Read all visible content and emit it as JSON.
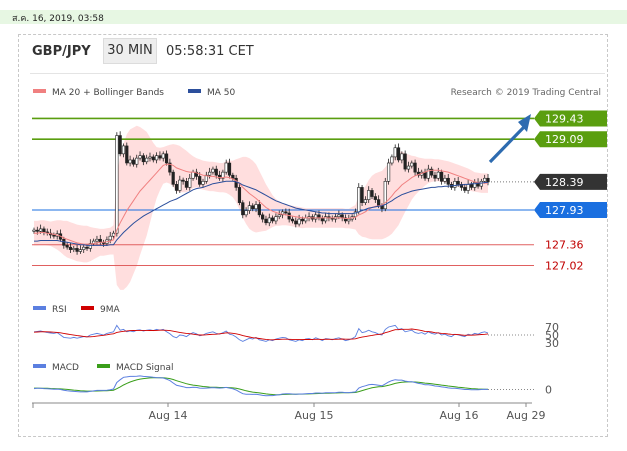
{
  "date_stamp": "ส.ค. 16, 2019, 03:58",
  "header": {
    "pair": "GBP/JPY",
    "timeframe": "30 MIN",
    "time": "05:58:31 CET"
  },
  "credit": "Research © 2019 Trading Central",
  "colors": {
    "bollinger": "#f08080",
    "ma50": "#2c4f9c",
    "resistance": "#5a9e0f",
    "support": "#e06060",
    "pivot": "#1a6fe0",
    "current": "#333333",
    "rsi": "#5b7fe0",
    "nine_ma": "#d00000",
    "macd": "#5b7fe0",
    "macd_signal": "#3a9e1a",
    "band_fill": "#ffd8d8"
  },
  "chart_data": [
    {
      "type": "candlestick",
      "legend": [
        {
          "name": "MA 20 + Bollinger Bands",
          "color": "#f08080"
        },
        {
          "name": "MA 50",
          "color": "#2c4f9c"
        }
      ],
      "ylim": [
        126.7,
        129.7
      ],
      "x_ticks": [
        "Aug 14",
        "Aug 15",
        "Aug 16",
        "Aug 29"
      ],
      "levels": [
        {
          "value": 129.43,
          "label": "129.43",
          "kind": "resistance"
        },
        {
          "value": 129.09,
          "label": "129.09",
          "kind": "resistance"
        },
        {
          "value": 128.39,
          "label": "128.39",
          "kind": "current"
        },
        {
          "value": 127.93,
          "label": "127.93",
          "kind": "pivot"
        },
        {
          "value": 127.36,
          "label": "127.36",
          "kind": "support"
        },
        {
          "value": 127.02,
          "label": "127.02",
          "kind": "support"
        }
      ],
      "close": [
        127.6,
        127.58,
        127.62,
        127.57,
        127.55,
        127.52,
        127.5,
        127.54,
        127.45,
        127.35,
        127.32,
        127.28,
        127.3,
        127.25,
        127.28,
        127.32,
        127.3,
        127.38,
        127.42,
        127.45,
        127.4,
        127.38,
        127.44,
        127.5,
        127.55,
        129.15,
        128.85,
        128.98,
        128.7,
        128.75,
        128.68,
        128.78,
        128.82,
        128.72,
        128.78,
        128.8,
        128.75,
        128.82,
        128.78,
        128.85,
        128.7,
        128.55,
        128.35,
        128.25,
        128.42,
        128.4,
        128.3,
        128.45,
        128.55,
        128.48,
        128.35,
        128.4,
        128.5,
        128.55,
        128.6,
        128.5,
        128.45,
        128.55,
        128.7,
        128.5,
        128.45,
        128.3,
        128.05,
        127.85,
        127.92,
        128.0,
        127.95,
        128.02,
        127.85,
        127.78,
        127.72,
        127.8,
        127.75,
        127.82,
        127.85,
        127.9,
        127.88,
        127.78,
        127.75,
        127.7,
        127.78,
        127.75,
        127.8,
        127.82,
        127.78,
        127.85,
        127.8,
        127.75,
        127.82,
        127.8,
        127.78,
        127.82,
        127.85,
        127.8,
        127.75,
        127.78,
        127.82,
        127.9,
        128.3,
        128.05,
        128.1,
        128.25,
        128.15,
        128.1,
        128.0,
        127.95,
        128.4,
        128.7,
        128.8,
        128.95,
        128.75,
        128.85,
        128.6,
        128.65,
        128.7,
        128.55,
        128.5,
        128.55,
        128.45,
        128.6,
        128.5,
        128.45,
        128.55,
        128.4,
        128.45,
        128.35,
        128.3,
        128.4,
        128.35,
        128.3,
        128.25,
        128.35,
        128.3,
        128.38,
        128.32,
        128.4,
        128.45,
        128.39
      ],
      "ma20": [
        127.55,
        127.55,
        127.56,
        127.56,
        127.55,
        127.54,
        127.53,
        127.52,
        127.5,
        127.47,
        127.45,
        127.43,
        127.41,
        127.39,
        127.38,
        127.37,
        127.37,
        127.37,
        127.38,
        127.39,
        127.4,
        127.4,
        127.41,
        127.42,
        127.44,
        127.6,
        127.72,
        127.82,
        127.92,
        128.0,
        128.08,
        128.16,
        128.24,
        128.3,
        128.36,
        128.42,
        128.48,
        128.54,
        128.6,
        128.66,
        128.68,
        128.68,
        128.66,
        128.62,
        128.6,
        128.58,
        128.56,
        128.55,
        128.55,
        128.54,
        128.52,
        128.5,
        128.49,
        128.48,
        128.48,
        128.47,
        128.46,
        128.46,
        128.47,
        128.46,
        128.44,
        128.41,
        128.36,
        128.3,
        128.25,
        128.2,
        128.16,
        128.12,
        128.07,
        128.02,
        127.97,
        127.94,
        127.91,
        127.89,
        127.87,
        127.86,
        127.85,
        127.84,
        127.83,
        127.82,
        127.81,
        127.8,
        127.8,
        127.8,
        127.8,
        127.8,
        127.8,
        127.8,
        127.8,
        127.8,
        127.8,
        127.8,
        127.8,
        127.8,
        127.79,
        127.79,
        127.8,
        127.81,
        127.85,
        127.87,
        127.9,
        127.94,
        127.97,
        127.99,
        128.0,
        128.01,
        128.05,
        128.1,
        128.16,
        128.23,
        128.28,
        128.34,
        128.38,
        128.42,
        128.46,
        128.49,
        128.51,
        128.53,
        128.55,
        128.57,
        128.58,
        128.58,
        128.58,
        128.57,
        128.56,
        128.55,
        128.53,
        128.51,
        128.49,
        128.47,
        128.45,
        128.43,
        128.41,
        128.39,
        128.38,
        128.37,
        128.37,
        128.37
      ],
      "bb_width": [
        0.2,
        0.2,
        0.2,
        0.2,
        0.2,
        0.2,
        0.22,
        0.24,
        0.26,
        0.28,
        0.3,
        0.3,
        0.3,
        0.3,
        0.3,
        0.3,
        0.3,
        0.28,
        0.26,
        0.24,
        0.22,
        0.22,
        0.22,
        0.22,
        0.24,
        0.9,
        1.1,
        1.2,
        1.25,
        1.25,
        1.2,
        1.15,
        1.05,
        0.95,
        0.85,
        0.7,
        0.55,
        0.42,
        0.35,
        0.3,
        0.3,
        0.32,
        0.35,
        0.38,
        0.38,
        0.36,
        0.34,
        0.3,
        0.26,
        0.24,
        0.24,
        0.24,
        0.24,
        0.24,
        0.24,
        0.24,
        0.24,
        0.24,
        0.26,
        0.28,
        0.3,
        0.35,
        0.42,
        0.5,
        0.55,
        0.58,
        0.58,
        0.56,
        0.5,
        0.44,
        0.38,
        0.32,
        0.26,
        0.22,
        0.2,
        0.18,
        0.17,
        0.17,
        0.17,
        0.17,
        0.17,
        0.17,
        0.16,
        0.16,
        0.16,
        0.16,
        0.16,
        0.16,
        0.16,
        0.16,
        0.16,
        0.16,
        0.16,
        0.16,
        0.16,
        0.16,
        0.18,
        0.2,
        0.32,
        0.38,
        0.42,
        0.48,
        0.52,
        0.54,
        0.55,
        0.56,
        0.58,
        0.6,
        0.62,
        0.62,
        0.6,
        0.55,
        0.48,
        0.42,
        0.36,
        0.32,
        0.28,
        0.25,
        0.22,
        0.2,
        0.19,
        0.18,
        0.18,
        0.18,
        0.18,
        0.18,
        0.18,
        0.18,
        0.18,
        0.18,
        0.18,
        0.18,
        0.17,
        0.16,
        0.16,
        0.16,
        0.16,
        0.16
      ],
      "ma50": [
        127.42,
        127.42,
        127.43,
        127.43,
        127.43,
        127.43,
        127.43,
        127.43,
        127.42,
        127.41,
        127.4,
        127.39,
        127.38,
        127.37,
        127.36,
        127.36,
        127.35,
        127.35,
        127.35,
        127.35,
        127.35,
        127.35,
        127.35,
        127.36,
        127.36,
        127.44,
        127.5,
        127.56,
        127.61,
        127.66,
        127.71,
        127.75,
        127.79,
        127.83,
        127.86,
        127.89,
        127.92,
        127.95,
        127.98,
        128.01,
        128.04,
        128.07,
        128.09,
        128.11,
        128.14,
        128.17,
        128.2,
        128.23,
        128.26,
        128.28,
        128.29,
        128.3,
        128.32,
        128.34,
        128.36,
        128.37,
        128.38,
        128.39,
        128.4,
        128.4,
        128.4,
        128.39,
        128.37,
        128.34,
        128.32,
        128.3,
        128.28,
        128.26,
        128.23,
        128.2,
        128.17,
        128.14,
        128.11,
        128.08,
        128.06,
        128.04,
        128.02,
        128.0,
        127.98,
        127.96,
        127.95,
        127.94,
        127.93,
        127.92,
        127.91,
        127.9,
        127.89,
        127.88,
        127.88,
        127.87,
        127.87,
        127.87,
        127.87,
        127.87,
        127.87,
        127.87,
        127.87,
        127.88,
        127.9,
        127.92,
        127.94,
        127.96,
        127.97,
        127.98,
        127.99,
        128.0,
        128.02,
        128.05,
        128.08,
        128.12,
        128.15,
        128.18,
        128.2,
        128.22,
        128.24,
        128.25,
        128.26,
        128.27,
        128.28,
        128.29,
        128.3,
        128.3,
        128.31,
        128.31,
        128.32,
        128.32,
        128.33,
        128.33,
        128.34,
        128.34,
        128.35,
        128.35,
        128.36,
        128.36,
        128.37,
        128.37,
        128.38,
        128.38
      ]
    },
    {
      "type": "line",
      "legend": [
        {
          "name": "RSI",
          "color": "#5b7fe0"
        },
        {
          "name": "9MA",
          "color": "#d00000"
        }
      ],
      "ylim": [
        30,
        70
      ],
      "y_ticks": [
        70,
        50,
        30
      ],
      "rsi": [
        58,
        59,
        60,
        58,
        56,
        55,
        54,
        56,
        50,
        44,
        43,
        42,
        44,
        42,
        44,
        46,
        45,
        50,
        52,
        54,
        52,
        50,
        54,
        56,
        58,
        74,
        62,
        64,
        58,
        60,
        58,
        62,
        63,
        60,
        62,
        63,
        61,
        64,
        62,
        64,
        58,
        53,
        46,
        43,
        50,
        49,
        46,
        52,
        56,
        53,
        48,
        50,
        54,
        56,
        58,
        54,
        52,
        56,
        60,
        52,
        50,
        45,
        38,
        34,
        38,
        42,
        40,
        44,
        38,
        36,
        34,
        38,
        36,
        40,
        42,
        44,
        43,
        38,
        36,
        34,
        38,
        36,
        40,
        41,
        38,
        43,
        40,
        36,
        41,
        40,
        38,
        41,
        43,
        40,
        36,
        38,
        41,
        46,
        66,
        56,
        58,
        62,
        58,
        56,
        52,
        50,
        64,
        70,
        72,
        74,
        64,
        66,
        58,
        60,
        62,
        56,
        54,
        56,
        52,
        58,
        54,
        52,
        56,
        50,
        52,
        48,
        46,
        52,
        50,
        48,
        46,
        52,
        50,
        54,
        52,
        56,
        58,
        55
      ],
      "nine_ma": [
        57,
        57.5,
        58,
        58.2,
        58,
        57.5,
        57,
        56.5,
        55.5,
        54,
        52.5,
        51,
        49.8,
        48.5,
        47.5,
        46.5,
        45.5,
        45.5,
        46,
        47.2,
        48.3,
        49.2,
        50.6,
        52,
        53.1,
        56.6,
        57.9,
        59.3,
        60.1,
        60.9,
        61.3,
        61.5,
        61.6,
        61.6,
        61.4,
        61.3,
        61.3,
        61.6,
        61.9,
        62.1,
        61.8,
        61,
        59.5,
        57.9,
        56.6,
        55.2,
        54,
        53.3,
        52.1,
        50.7,
        50.1,
        50,
        50.5,
        51.3,
        51.8,
        52,
        52.9,
        54,
        55.6,
        55.3,
        54.3,
        53.1,
        51.1,
        48.6,
        46.8,
        45.1,
        43.3,
        42.4,
        41.2,
        40,
        38.9,
        38.3,
        38,
        38.5,
        38.9,
        39.5,
        39.4,
        39.3,
        39.1,
        38.9,
        38.6,
        38.6,
        38.8,
        38.8,
        38.9,
        39.2,
        39.3,
        39.1,
        39.4,
        39.3,
        39.3,
        39.3,
        39.6,
        39.9,
        39.6,
        39.4,
        39.7,
        40.6,
        43.1,
        44.7,
        46.1,
        47.7,
        49.1,
        50.5,
        51.6,
        52.8,
        55.7,
        58.1,
        60.7,
        63.3,
        63.2,
        64.2,
        64.2,
        64.3,
        64.9,
        64.1,
        62.8,
        60.9,
        59.1,
        58.4,
        57.6,
        55.8,
        55.2,
        53.9,
        53.5,
        52.5,
        51.8,
        51.6,
        51.1,
        50.1,
        49.3,
        49.8,
        49.6,
        50,
        50.4,
        51.2,
        51.8,
        52.7
      ]
    },
    {
      "type": "line",
      "legend": [
        {
          "name": "MACD",
          "color": "#5b7fe0"
        },
        {
          "name": "MACD Signal",
          "color": "#3a9e1a"
        }
      ],
      "y_ticks": [
        0
      ],
      "macd": [
        0.02,
        0.025,
        0.025,
        0.02,
        0.015,
        0.01,
        0.005,
        0.008,
        0,
        -0.015,
        -0.025,
        -0.035,
        -0.04,
        -0.045,
        -0.05,
        -0.05,
        -0.05,
        -0.04,
        -0.03,
        -0.02,
        -0.02,
        -0.02,
        -0.015,
        -0.005,
        0.01,
        0.15,
        0.21,
        0.26,
        0.27,
        0.28,
        0.28,
        0.285,
        0.29,
        0.28,
        0.275,
        0.27,
        0.26,
        0.255,
        0.25,
        0.245,
        0.22,
        0.19,
        0.14,
        0.09,
        0.075,
        0.06,
        0.04,
        0.04,
        0.05,
        0.045,
        0.03,
        0.025,
        0.03,
        0.035,
        0.04,
        0.035,
        0.03,
        0.035,
        0.045,
        0.03,
        0.015,
        -0.01,
        -0.05,
        -0.09,
        -0.1,
        -0.1,
        -0.105,
        -0.1,
        -0.11,
        -0.125,
        -0.135,
        -0.13,
        -0.13,
        -0.12,
        -0.11,
        -0.095,
        -0.09,
        -0.09,
        -0.095,
        -0.1,
        -0.095,
        -0.095,
        -0.09,
        -0.085,
        -0.085,
        -0.075,
        -0.075,
        -0.08,
        -0.07,
        -0.07,
        -0.07,
        -0.065,
        -0.06,
        -0.06,
        -0.065,
        -0.065,
        -0.06,
        -0.05,
        0.03,
        0.06,
        0.08,
        0.1,
        0.11,
        0.1,
        0.09,
        0.08,
        0.12,
        0.16,
        0.19,
        0.21,
        0.2,
        0.2,
        0.18,
        0.17,
        0.165,
        0.15,
        0.13,
        0.12,
        0.1,
        0.1,
        0.09,
        0.075,
        0.07,
        0.055,
        0.05,
        0.035,
        0.025,
        0.025,
        0.02,
        0.01,
        0,
        0,
        -0.005,
        -0.005,
        -0.005,
        0,
        0.005,
        0
      ],
      "macd_signal": [
        0.03,
        0.03,
        0.029,
        0.027,
        0.025,
        0.022,
        0.019,
        0.017,
        0.013,
        0.008,
        0.002,
        -0.005,
        -0.012,
        -0.019,
        -0.025,
        -0.03,
        -0.034,
        -0.035,
        -0.034,
        -0.031,
        -0.029,
        -0.027,
        -0.025,
        -0.021,
        -0.015,
        0.018,
        0.056,
        0.096,
        0.131,
        0.161,
        0.185,
        0.205,
        0.222,
        0.233,
        0.242,
        0.247,
        0.25,
        0.251,
        0.251,
        0.25,
        0.244,
        0.233,
        0.214,
        0.189,
        0.166,
        0.145,
        0.124,
        0.107,
        0.095,
        0.085,
        0.074,
        0.064,
        0.057,
        0.052,
        0.05,
        0.047,
        0.044,
        0.042,
        0.043,
        0.04,
        0.035,
        0.026,
        0.011,
        -0.009,
        -0.027,
        -0.042,
        -0.055,
        -0.064,
        -0.073,
        -0.083,
        -0.094,
        -0.101,
        -0.107,
        -0.11,
        -0.11,
        -0.107,
        -0.104,
        -0.101,
        -0.1,
        -0.1,
        -0.099,
        -0.098,
        -0.096,
        -0.094,
        -0.092,
        -0.088,
        -0.086,
        -0.084,
        -0.081,
        -0.079,
        -0.077,
        -0.074,
        -0.072,
        -0.069,
        -0.068,
        -0.068,
        -0.066,
        -0.063,
        -0.044,
        -0.023,
        -0.002,
        0.018,
        0.037,
        0.049,
        0.057,
        0.062,
        0.074,
        0.091,
        0.11,
        0.13,
        0.144,
        0.155,
        0.16,
        0.162,
        0.163,
        0.161,
        0.155,
        0.148,
        0.138,
        0.13,
        0.122,
        0.113,
        0.105,
        0.095,
        0.086,
        0.076,
        0.066,
        0.058,
        0.05,
        0.042,
        0.034,
        0.027,
        0.02,
        0.015,
        0.011,
        0.008,
        0.007,
        0.006
      ]
    }
  ]
}
